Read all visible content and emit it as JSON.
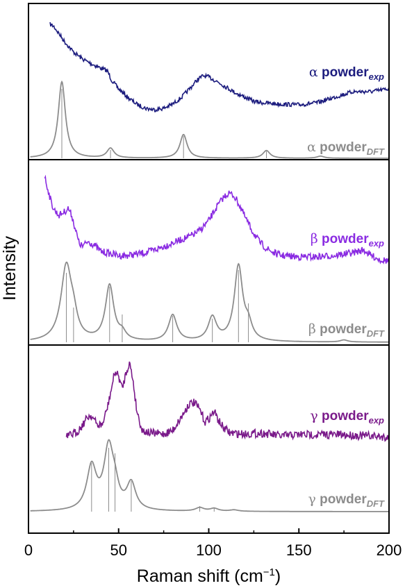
{
  "chart_data": {
    "type": "line",
    "xlabel": "Raman shift (cm",
    "xlabel_sup": "−1",
    "xlabel_close": ")",
    "ylabel": "Intensity",
    "xlim": [
      0,
      200
    ],
    "x_ticks": [
      0,
      50,
      100,
      150,
      200
    ],
    "x_tick_labels": [
      "0",
      "50",
      "100",
      "150",
      "200"
    ],
    "panels": [
      {
        "name": "alpha",
        "exp": {
          "label_greek": "α",
          "label_text": " powder",
          "label_sub": "exp",
          "color": "#1c1c7e",
          "points": [
            [
              12,
              35
            ],
            [
              14,
              38
            ],
            [
              16,
              45
            ],
            [
              20,
              60
            ],
            [
              25,
              75
            ],
            [
              30,
              85
            ],
            [
              35,
              92
            ],
            [
              40,
              98
            ],
            [
              43,
              101
            ],
            [
              44,
              103
            ],
            [
              46,
              115
            ],
            [
              50,
              128
            ],
            [
              55,
              140
            ],
            [
              60,
              150
            ],
            [
              65,
              156
            ],
            [
              70,
              158
            ],
            [
              75,
              156
            ],
            [
              80,
              150
            ],
            [
              85,
              140
            ],
            [
              90,
              126
            ],
            [
              94,
              114
            ],
            [
              97,
              109
            ],
            [
              100,
              111
            ],
            [
              105,
              118
            ],
            [
              110,
              126
            ],
            [
              115,
              134
            ],
            [
              120,
              140
            ],
            [
              125,
              146
            ],
            [
              130,
              148
            ],
            [
              140,
              150
            ],
            [
              150,
              151
            ],
            [
              160,
              148
            ],
            [
              170,
              140
            ],
            [
              180,
              132
            ],
            [
              190,
              132
            ],
            [
              195,
              130
            ],
            [
              200,
              128
            ]
          ],
          "noise": 3
        },
        "dft": {
          "label_greek": "α",
          "label_text": " powder",
          "label_sub": "DFT",
          "color": "#8c8c8c",
          "baseline": 228,
          "peaks": [
            [
              18.5,
              110,
              2.4
            ],
            [
              45.5,
              14,
              2.4
            ],
            [
              86,
              34,
              2.4
            ],
            [
              132,
              11,
              2.4
            ],
            [
              162,
              3,
              2.4
            ]
          ],
          "sticks": [
            [
              18.5,
              100
            ],
            [
              45.5,
              12
            ],
            [
              86,
              32
            ],
            [
              132,
              10
            ]
          ]
        }
      },
      {
        "name": "beta",
        "exp": {
          "label_greek": "β",
          "label_text": " powder",
          "label_sub": "exp",
          "color": "#8a2be2",
          "points": [
            [
              9,
              255
            ],
            [
              11,
              275
            ],
            [
              13,
              295
            ],
            [
              15,
              305
            ],
            [
              17,
              310
            ],
            [
              20,
              305
            ],
            [
              22,
              300
            ],
            [
              24,
              310
            ],
            [
              26,
              330
            ],
            [
              28,
              350
            ],
            [
              30,
              355
            ],
            [
              33,
              348
            ],
            [
              36,
              352
            ],
            [
              40,
              362
            ],
            [
              45,
              365
            ],
            [
              50,
              368
            ],
            [
              55,
              368
            ],
            [
              60,
              366
            ],
            [
              65,
              364
            ],
            [
              70,
              360
            ],
            [
              75,
              355
            ],
            [
              80,
              350
            ],
            [
              85,
              345
            ],
            [
              90,
              340
            ],
            [
              95,
              332
            ],
            [
              100,
              318
            ],
            [
              104,
              300
            ],
            [
              108,
              285
            ],
            [
              111,
              278
            ],
            [
              114,
              282
            ],
            [
              117,
              295
            ],
            [
              120,
              312
            ],
            [
              124,
              332
            ],
            [
              128,
              348
            ],
            [
              132,
              358
            ],
            [
              136,
              364
            ],
            [
              140,
              368
            ],
            [
              150,
              370
            ],
            [
              160,
              370
            ],
            [
              170,
              368
            ],
            [
              180,
              364
            ],
            [
              186,
              360
            ],
            [
              190,
              368
            ],
            [
              195,
              374
            ],
            [
              200,
              376
            ]
          ],
          "noise": 5
        },
        "dft": {
          "label_greek": "β",
          "label_text": " powder",
          "label_sub": "DFT",
          "color": "#8c8c8c",
          "baseline": 493,
          "peaks": [
            [
              21,
              108,
              3.6
            ],
            [
              25,
              22,
              2.4
            ],
            [
              45,
              80,
              2.8
            ],
            [
              52,
              10,
              2.4
            ],
            [
              80,
              38,
              2.8
            ],
            [
              102,
              34,
              2.8
            ],
            [
              116.5,
              108,
              2.8
            ],
            [
              122,
              20,
              2.4
            ],
            [
              175,
              3,
              2.4
            ]
          ],
          "sticks": [
            [
              21,
              100
            ],
            [
              25,
              50
            ],
            [
              45,
              80
            ],
            [
              52,
              40
            ],
            [
              80,
              38
            ],
            [
              102,
              34
            ],
            [
              116.5,
              104
            ],
            [
              122,
              56
            ]
          ]
        }
      },
      {
        "name": "gamma",
        "exp": {
          "label_greek": "γ",
          "label_text": " powder",
          "label_sub": "exp",
          "color": "#7a1a8a",
          "points": [
            [
              21,
              630
            ],
            [
              24,
              626
            ],
            [
              27,
              622
            ],
            [
              30,
              612
            ],
            [
              33,
              600
            ],
            [
              35,
              598
            ],
            [
              38,
              612
            ],
            [
              41,
              612
            ],
            [
              44,
              585
            ],
            [
              46,
              560
            ],
            [
              48,
              535
            ],
            [
              50,
              542
            ],
            [
              52,
              560
            ],
            [
              54,
              538
            ],
            [
              56,
              522
            ],
            [
              58,
              548
            ],
            [
              60,
              590
            ],
            [
              63,
              620
            ],
            [
              68,
              624
            ],
            [
              75,
              625
            ],
            [
              80,
              620
            ],
            [
              85,
              600
            ],
            [
              89,
              582
            ],
            [
              92,
              580
            ],
            [
              95,
              590
            ],
            [
              98,
              608
            ],
            [
              101,
              600
            ],
            [
              103,
              592
            ],
            [
              105,
              604
            ],
            [
              108,
              616
            ],
            [
              112,
              624
            ],
            [
              120,
              625
            ],
            [
              130,
              624
            ],
            [
              140,
              628
            ],
            [
              150,
              626
            ],
            [
              160,
              626
            ],
            [
              170,
              626
            ],
            [
              180,
              627
            ],
            [
              190,
              628
            ],
            [
              200,
              630
            ]
          ],
          "noise": 6
        },
        "dft": {
          "label_greek": "γ",
          "label_text": " powder",
          "label_sub": "DFT",
          "color": "#8c8c8c",
          "baseline": 737,
          "peaks": [
            [
              35,
              62,
              3.2
            ],
            [
              44.5,
              88,
              3.2
            ],
            [
              48,
              22,
              2.4
            ],
            [
              57,
              38,
              3.0
            ],
            [
              95,
              5,
              2.8
            ],
            [
              103,
              4,
              2.8
            ],
            [
              114,
              2,
              2.8
            ]
          ],
          "sticks": [
            [
              35,
              70
            ],
            [
              44.5,
              92
            ],
            [
              48,
              84
            ],
            [
              57,
              44
            ],
            [
              95,
              8
            ],
            [
              103,
              6
            ]
          ]
        }
      }
    ]
  }
}
